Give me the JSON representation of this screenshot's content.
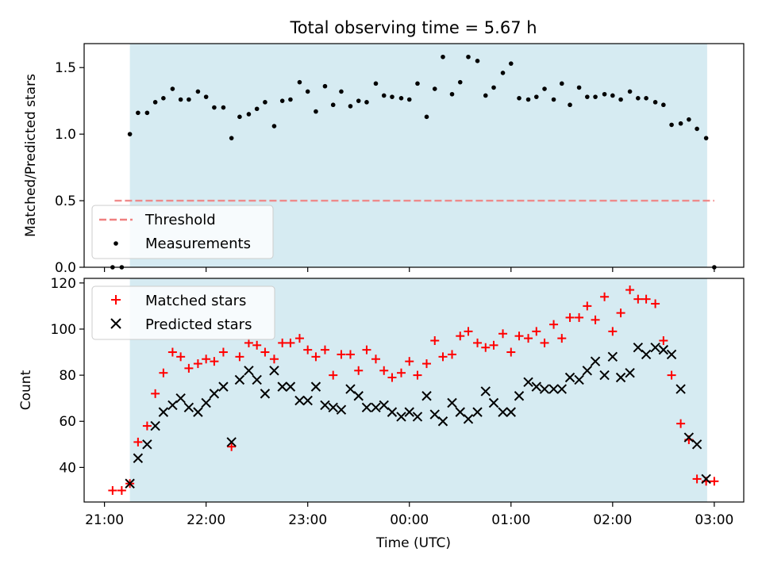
{
  "figure": {
    "title": "Total observing time = 5.67 h",
    "shaded_band_color": "#add8e6",
    "xlabel": "Time (UTC)",
    "x_tick_labels": [
      "21:00",
      "22:00",
      "23:00",
      "00:00",
      "01:00",
      "02:00",
      "03:00"
    ]
  },
  "chart_data": [
    {
      "type": "scatter",
      "ylabel": "Matched/Predicted stars",
      "ylim": [
        0,
        1.68
      ],
      "y_ticks": [
        0,
        0.5,
        1.0,
        1.5
      ],
      "y_tick_labels": [
        "0.0",
        "0.5",
        "1.0",
        "1.5"
      ],
      "xlim_hours_since_2100": [
        -0.2,
        6.29
      ],
      "shaded_interval_hours_since_2100": [
        0.25,
        5.93
      ],
      "threshold": {
        "name": "Threshold",
        "value": 0.5,
        "x_range_hours_since_2100": [
          0.1,
          6.0
        ],
        "color": "#f08080"
      },
      "legend": {
        "placement": "lower-left",
        "entries": [
          "Threshold",
          "Measurements"
        ]
      },
      "series": [
        {
          "name": "Measurements",
          "color": "#000000",
          "x": [
            0.08,
            0.17,
            0.25,
            0.33,
            0.42,
            0.5,
            0.58,
            0.67,
            0.75,
            0.83,
            0.92,
            1.0,
            1.08,
            1.17,
            1.25,
            1.33,
            1.42,
            1.5,
            1.58,
            1.67,
            1.75,
            1.83,
            1.92,
            2.0,
            2.08,
            2.17,
            2.25,
            2.33,
            2.42,
            2.5,
            2.58,
            2.67,
            2.75,
            2.83,
            2.92,
            3.0,
            3.08,
            3.17,
            3.25,
            3.33,
            3.42,
            3.5,
            3.58,
            3.67,
            3.75,
            3.83,
            3.92,
            4.0,
            4.08,
            4.17,
            4.25,
            4.33,
            4.42,
            4.5,
            4.58,
            4.67,
            4.75,
            4.83,
            4.92,
            5.0,
            5.08,
            5.17,
            5.25,
            5.33,
            5.42,
            5.5,
            5.58,
            5.67,
            5.75,
            5.83,
            5.92,
            6.0
          ],
          "y": [
            0,
            0,
            1.0,
            1.16,
            1.16,
            1.24,
            1.27,
            1.34,
            1.26,
            1.26,
            1.32,
            1.28,
            1.2,
            1.2,
            0.97,
            1.13,
            1.15,
            1.19,
            1.24,
            1.06,
            1.25,
            1.26,
            1.39,
            1.32,
            1.17,
            1.36,
            1.22,
            1.32,
            1.21,
            1.25,
            1.24,
            1.38,
            1.29,
            1.28,
            1.27,
            1.26,
            1.38,
            1.13,
            1.34,
            1.58,
            1.3,
            1.39,
            1.58,
            1.55,
            1.29,
            1.35,
            1.46,
            1.53,
            1.27,
            1.26,
            1.28,
            1.34,
            1.26,
            1.38,
            1.22,
            1.35,
            1.28,
            1.28,
            1.3,
            1.29,
            1.26,
            1.32,
            1.27,
            1.27,
            1.24,
            1.22,
            1.07,
            1.08,
            1.11,
            1.04,
            0.97,
            0
          ]
        }
      ]
    },
    {
      "type": "scatter",
      "ylabel": "Count",
      "ylim": [
        25,
        122
      ],
      "y_ticks": [
        40,
        60,
        80,
        100,
        120
      ],
      "y_tick_labels": [
        "40",
        "60",
        "80",
        "100",
        "120"
      ],
      "xlim_hours_since_2100": [
        -0.2,
        6.29
      ],
      "legend": {
        "placement": "top-left",
        "entries": [
          "Matched stars",
          "Predicted stars"
        ]
      },
      "series": [
        {
          "name": "Matched stars",
          "marker": "plus",
          "color": "#ff0000",
          "x": [
            0.08,
            0.17,
            0.25,
            0.33,
            0.42,
            0.5,
            0.58,
            0.67,
            0.75,
            0.83,
            0.92,
            1.0,
            1.08,
            1.17,
            1.25,
            1.33,
            1.42,
            1.5,
            1.58,
            1.67,
            1.75,
            1.83,
            1.92,
            2.0,
            2.08,
            2.17,
            2.25,
            2.33,
            2.42,
            2.5,
            2.58,
            2.67,
            2.75,
            2.83,
            2.92,
            3.0,
            3.08,
            3.17,
            3.25,
            3.33,
            3.42,
            3.5,
            3.58,
            3.67,
            3.75,
            3.83,
            3.92,
            4.0,
            4.08,
            4.17,
            4.25,
            4.33,
            4.42,
            4.5,
            4.58,
            4.67,
            4.75,
            4.83,
            4.92,
            5.0,
            5.08,
            5.17,
            5.25,
            5.33,
            5.42,
            5.5,
            5.58,
            5.67,
            5.75,
            5.83,
            5.92,
            6.0
          ],
          "y": [
            30,
            30,
            33,
            51,
            58,
            72,
            81,
            90,
            88,
            83,
            85,
            87,
            86,
            90,
            49,
            88,
            94,
            93,
            90,
            87,
            94,
            94,
            96,
            91,
            88,
            91,
            80,
            89,
            89,
            82,
            91,
            87,
            82,
            79,
            81,
            86,
            80,
            85,
            95,
            88,
            89,
            97,
            99,
            94,
            92,
            93,
            98,
            90,
            97,
            96,
            99,
            94,
            102,
            96,
            105,
            105,
            110,
            104,
            114,
            99,
            107,
            117,
            113,
            113,
            111,
            95,
            80,
            59,
            52,
            35,
            34,
            34
          ]
        },
        {
          "name": "Predicted stars",
          "marker": "x",
          "color": "#000000",
          "x": [
            0.25,
            0.33,
            0.42,
            0.5,
            0.58,
            0.67,
            0.75,
            0.83,
            0.92,
            1.0,
            1.08,
            1.17,
            1.25,
            1.33,
            1.42,
            1.5,
            1.58,
            1.67,
            1.75,
            1.83,
            1.92,
            2.0,
            2.08,
            2.17,
            2.25,
            2.33,
            2.42,
            2.5,
            2.58,
            2.67,
            2.75,
            2.83,
            2.92,
            3.0,
            3.08,
            3.17,
            3.25,
            3.33,
            3.42,
            3.5,
            3.58,
            3.67,
            3.75,
            3.83,
            3.92,
            4.0,
            4.08,
            4.17,
            4.25,
            4.33,
            4.42,
            4.5,
            4.58,
            4.67,
            4.75,
            4.83,
            4.92,
            5.0,
            5.08,
            5.17,
            5.25,
            5.33,
            5.42,
            5.5,
            5.58,
            5.67,
            5.75,
            5.83,
            5.92
          ],
          "y": [
            33,
            44,
            50,
            58,
            64,
            67,
            70,
            66,
            64,
            68,
            72,
            75,
            51,
            78,
            82,
            78,
            72,
            82,
            75,
            75,
            69,
            69,
            75,
            67,
            66,
            65,
            74,
            71,
            66,
            66,
            67,
            64,
            62,
            64,
            62,
            71,
            63,
            60,
            68,
            64,
            61,
            64,
            73,
            68,
            64,
            64,
            71,
            77,
            75,
            74,
            74,
            74,
            79,
            78,
            82,
            86,
            80,
            88,
            79,
            81,
            92,
            89,
            92,
            91,
            89,
            74,
            53,
            50,
            35
          ]
        }
      ]
    }
  ]
}
